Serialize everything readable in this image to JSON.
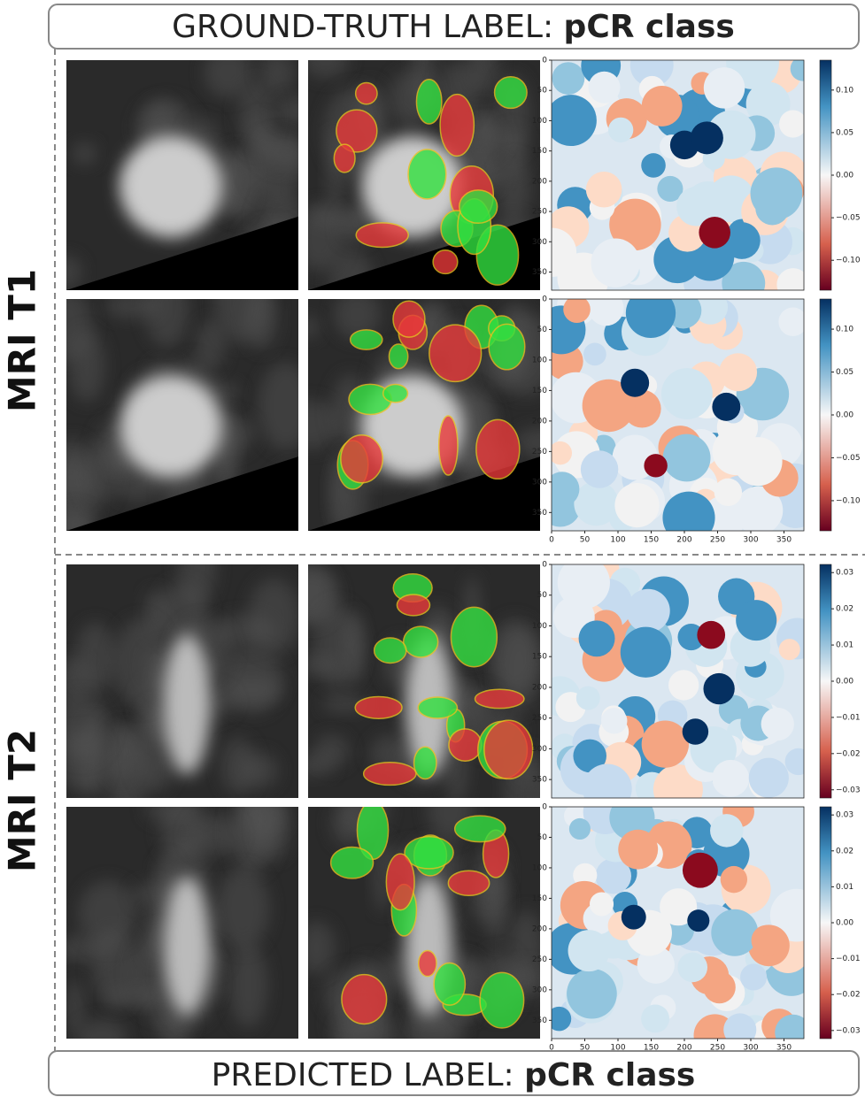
{
  "header": {
    "prefix": "GROUND-TRUTH LABEL:",
    "label": "pCR class"
  },
  "footer": {
    "prefix": "PREDICTED LABEL:",
    "label": "pCR class"
  },
  "sections": [
    {
      "title": "MRI T1",
      "rows": [
        {
          "yticks": [
            "0",
            "50",
            "100",
            "150",
            "200",
            "250",
            "300",
            "350"
          ],
          "xticks": [],
          "colorbar": [
            "0.10",
            "0.05",
            "0.00",
            "−0.05",
            "−0.10"
          ]
        },
        {
          "yticks": [
            "0",
            "50",
            "100",
            "150",
            "200",
            "250",
            "300",
            "350"
          ],
          "xticks": [
            "0",
            "50",
            "100",
            "150",
            "200",
            "250",
            "300",
            "350"
          ],
          "colorbar": [
            "0.10",
            "0.05",
            "0.00",
            "−0.05",
            "−0.10"
          ]
        }
      ]
    },
    {
      "title": "MRI T2",
      "rows": [
        {
          "yticks": [
            "0",
            "50",
            "100",
            "150",
            "200",
            "250",
            "300",
            "350"
          ],
          "xticks": [],
          "colorbar": [
            "0.03",
            "0.02",
            "0.01",
            "0.00",
            "−0.01",
            "−0.02",
            "−0.03"
          ]
        },
        {
          "yticks": [
            "0",
            "50",
            "100",
            "150",
            "200",
            "250",
            "300",
            "350"
          ],
          "xticks": [
            "0",
            "50",
            "100",
            "150",
            "200",
            "250",
            "300",
            "350"
          ],
          "colorbar": [
            "0.03",
            "0.02",
            "0.01",
            "0.00",
            "−0.01",
            "−0.02",
            "−0.03"
          ]
        }
      ]
    }
  ]
}
